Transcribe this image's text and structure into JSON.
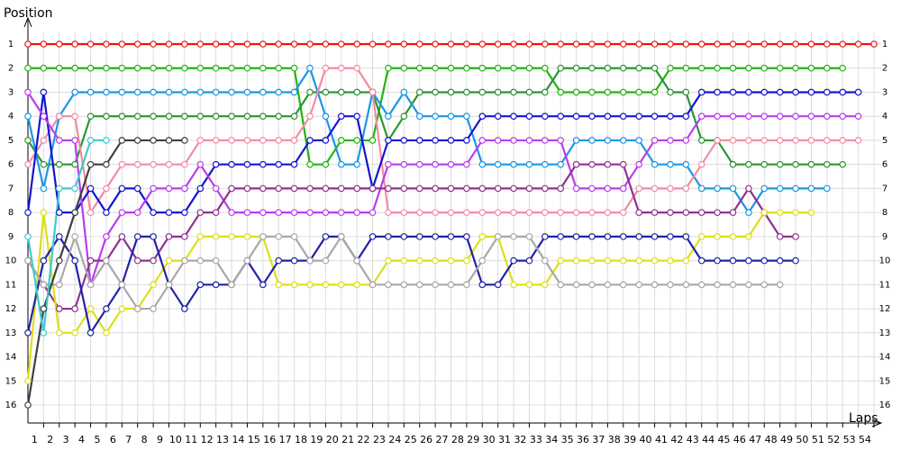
{
  "chart_data": {
    "type": "line",
    "y_label": "Position",
    "x_label": "Laps",
    "x": [
      0,
      1,
      2,
      3,
      4,
      5,
      6,
      7,
      8,
      9,
      10,
      11,
      12,
      13,
      14,
      15,
      16,
      17,
      18,
      19,
      20,
      21,
      22,
      23,
      24,
      25,
      26,
      27,
      28,
      29,
      30,
      31,
      32,
      33,
      34,
      35,
      36,
      37,
      38,
      39,
      40,
      41,
      42,
      43,
      44,
      45,
      46,
      47,
      48,
      49,
      50,
      51,
      52,
      53,
      54
    ],
    "xlim": [
      0,
      54
    ],
    "xticks": [
      1,
      2,
      3,
      4,
      5,
      6,
      7,
      8,
      9,
      10,
      11,
      12,
      13,
      14,
      15,
      16,
      17,
      18,
      19,
      20,
      21,
      22,
      23,
      24,
      25,
      26,
      27,
      28,
      29,
      30,
      31,
      32,
      33,
      34,
      35,
      36,
      37,
      38,
      39,
      40,
      41,
      42,
      43,
      44,
      45,
      46,
      47,
      48,
      49,
      50,
      51,
      52,
      53,
      54
    ],
    "ylim": [
      16,
      1
    ],
    "yticks": [
      1,
      2,
      3,
      4,
      5,
      6,
      7,
      8,
      9,
      10,
      11,
      12,
      13,
      14,
      15,
      16
    ],
    "grid": true,
    "series": [
      {
        "color": "#e81515",
        "values": [
          1,
          1,
          1,
          1,
          1,
          1,
          1,
          1,
          1,
          1,
          1,
          1,
          1,
          1,
          1,
          1,
          1,
          1,
          1,
          1,
          1,
          1,
          1,
          1,
          1,
          1,
          1,
          1,
          1,
          1,
          1,
          1,
          1,
          1,
          1,
          1,
          1,
          1,
          1,
          1,
          1,
          1,
          1,
          1,
          1,
          1,
          1,
          1,
          1,
          1,
          1,
          1,
          1,
          1,
          1
        ]
      },
      {
        "color": "#22b410",
        "values": [
          2,
          2,
          2,
          2,
          2,
          2,
          2,
          2,
          2,
          2,
          2,
          2,
          2,
          2,
          2,
          2,
          2,
          2,
          6,
          6,
          5,
          5,
          5,
          2,
          2,
          2,
          2,
          2,
          2,
          2,
          2,
          2,
          2,
          2,
          3,
          3,
          3,
          3,
          3,
          3,
          3,
          2,
          2,
          2,
          2,
          2,
          2,
          2,
          2,
          2,
          2,
          2,
          2,
          null,
          null
        ]
      },
      {
        "color": "#2a9630",
        "values": [
          5,
          6,
          6,
          6,
          4,
          4,
          4,
          4,
          4,
          4,
          4,
          4,
          4,
          4,
          4,
          4,
          4,
          4,
          3,
          3,
          3,
          3,
          3,
          5,
          4,
          3,
          3,
          3,
          3,
          3,
          3,
          3,
          3,
          3,
          2,
          2,
          2,
          2,
          2,
          2,
          2,
          3,
          3,
          5,
          5,
          6,
          6,
          6,
          6,
          6,
          6,
          6,
          6,
          null,
          null
        ]
      },
      {
        "color": "#1a96e6",
        "values": [
          4,
          7,
          4,
          3,
          3,
          3,
          3,
          3,
          3,
          3,
          3,
          3,
          3,
          3,
          3,
          3,
          3,
          3,
          2,
          4,
          6,
          6,
          3,
          4,
          3,
          4,
          4,
          4,
          4,
          6,
          6,
          6,
          6,
          6,
          6,
          5,
          5,
          5,
          5,
          5,
          6,
          6,
          6,
          7,
          7,
          7,
          8,
          7,
          7,
          7,
          7,
          7,
          null,
          null,
          null
        ]
      },
      {
        "color": "#f28ca2",
        "values": [
          6,
          5,
          4,
          4,
          8,
          7,
          6,
          6,
          6,
          6,
          6,
          5,
          5,
          5,
          5,
          5,
          5,
          5,
          4,
          2,
          2,
          2,
          3,
          8,
          8,
          8,
          8,
          8,
          8,
          8,
          8,
          8,
          8,
          8,
          8,
          8,
          8,
          8,
          8,
          7,
          7,
          7,
          7,
          6,
          5,
          5,
          5,
          5,
          5,
          5,
          5,
          5,
          5,
          5,
          null
        ]
      },
      {
        "color": "#1414d2",
        "values": [
          8,
          3,
          8,
          8,
          7,
          8,
          7,
          7,
          8,
          8,
          8,
          7,
          6,
          6,
          6,
          6,
          6,
          6,
          5,
          5,
          4,
          4,
          7,
          5,
          5,
          5,
          5,
          5,
          5,
          4,
          4,
          4,
          4,
          4,
          4,
          4,
          4,
          4,
          4,
          4,
          4,
          4,
          4,
          3,
          3,
          3,
          3,
          3,
          3,
          3,
          3,
          3,
          3,
          3,
          null
        ]
      },
      {
        "color": "#bb3cee",
        "values": [
          3,
          4,
          5,
          5,
          11,
          9,
          8,
          8,
          7,
          7,
          7,
          6,
          7,
          8,
          8,
          8,
          8,
          8,
          8,
          8,
          8,
          8,
          8,
          6,
          6,
          6,
          6,
          6,
          6,
          5,
          5,
          5,
          5,
          5,
          5,
          7,
          7,
          7,
          7,
          6,
          5,
          5,
          5,
          4,
          4,
          4,
          4,
          4,
          4,
          4,
          4,
          4,
          4,
          4,
          null
        ]
      },
      {
        "color": "#8e3290",
        "values": [
          10,
          11,
          12,
          12,
          10,
          10,
          9,
          10,
          10,
          9,
          9,
          8,
          8,
          7,
          7,
          7,
          7,
          7,
          7,
          7,
          7,
          7,
          7,
          7,
          7,
          7,
          7,
          7,
          7,
          7,
          7,
          7,
          7,
          7,
          7,
          6,
          6,
          6,
          6,
          8,
          8,
          8,
          8,
          8,
          8,
          8,
          7,
          8,
          9,
          9,
          null,
          null,
          null,
          null,
          null
        ]
      },
      {
        "color": "#dede18",
        "values": [
          15,
          8,
          13,
          13,
          12,
          13,
          12,
          12,
          11,
          10,
          10,
          9,
          9,
          9,
          9,
          9,
          11,
          11,
          11,
          11,
          11,
          11,
          11,
          10,
          10,
          10,
          10,
          10,
          10,
          9,
          9,
          11,
          11,
          11,
          10,
          10,
          10,
          10,
          10,
          10,
          10,
          10,
          10,
          9,
          9,
          9,
          9,
          8,
          8,
          8,
          8,
          null,
          null,
          null,
          null
        ]
      },
      {
        "color": "#2222a8",
        "values": [
          13,
          10,
          9,
          10,
          13,
          12,
          11,
          9,
          9,
          11,
          12,
          11,
          11,
          11,
          10,
          11,
          10,
          10,
          10,
          9,
          9,
          10,
          9,
          9,
          9,
          9,
          9,
          9,
          9,
          11,
          11,
          10,
          10,
          9,
          9,
          9,
          9,
          9,
          9,
          9,
          9,
          9,
          9,
          10,
          10,
          10,
          10,
          10,
          10,
          10,
          null,
          null,
          null,
          null,
          null
        ]
      },
      {
        "color": "#a8a8a8",
        "values": [
          10,
          11,
          11,
          9,
          11,
          10,
          11,
          12,
          12,
          11,
          10,
          10,
          10,
          11,
          10,
          9,
          9,
          9,
          10,
          10,
          9,
          10,
          11,
          11,
          11,
          11,
          11,
          11,
          11,
          10,
          9,
          9,
          9,
          10,
          11,
          11,
          11,
          11,
          11,
          11,
          11,
          11,
          11,
          11,
          11,
          11,
          11,
          11,
          11,
          null,
          null,
          null,
          null,
          null,
          null
        ]
      },
      {
        "color": "#404040",
        "values": [
          16,
          12,
          10,
          8,
          6,
          6,
          5,
          5,
          5,
          5,
          5,
          null,
          null,
          null,
          null,
          null,
          null,
          null,
          null,
          null,
          null,
          null,
          null,
          null,
          null,
          null,
          null,
          null,
          null,
          null,
          null,
          null,
          null,
          null,
          null,
          null,
          null,
          null,
          null,
          null,
          null,
          null,
          null,
          null,
          null,
          null,
          null,
          null,
          null,
          null,
          null,
          null,
          null,
          null,
          null
        ]
      },
      {
        "color": "#40c8d0",
        "values": [
          9,
          13,
          7,
          7,
          5,
          5,
          null,
          null,
          null,
          null,
          null,
          null,
          null,
          null,
          null,
          null,
          null,
          null,
          null,
          null,
          null,
          null,
          null,
          null,
          null,
          null,
          null,
          null,
          null,
          null,
          null,
          null,
          null,
          null,
          null,
          null,
          null,
          null,
          null,
          null,
          null,
          null,
          null,
          null,
          null,
          null,
          null,
          null,
          null,
          null,
          null,
          null,
          null,
          null,
          null
        ]
      }
    ]
  }
}
